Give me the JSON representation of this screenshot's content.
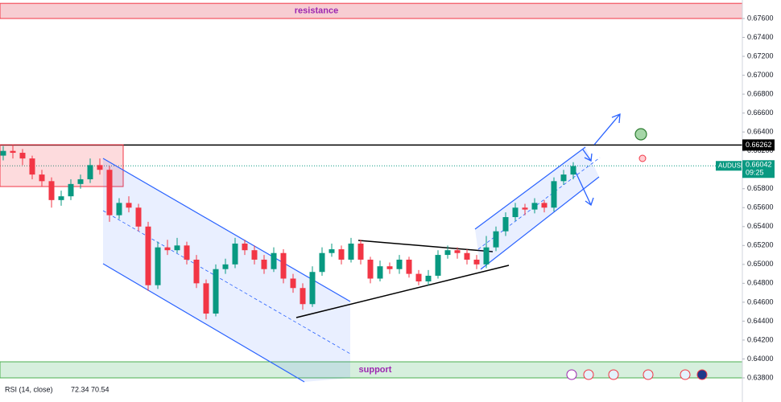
{
  "chart_data": {
    "type": "candlestick",
    "symbol": "AUDUSD",
    "up_color": "#089981",
    "down_color": "#f23645",
    "ylim": [
      0.638,
      0.676
    ],
    "yticks": [
      {
        "value": 0.676,
        "label": "0.67600"
      },
      {
        "value": 0.674,
        "label": "0.67400"
      },
      {
        "value": 0.672,
        "label": "0.67200"
      },
      {
        "value": 0.67,
        "label": "0.67000"
      },
      {
        "value": 0.668,
        "label": "0.66800"
      },
      {
        "value": 0.666,
        "label": "0.66600"
      },
      {
        "value": 0.664,
        "label": "0.66400"
      },
      {
        "value": 0.662,
        "label": "0.66200"
      },
      {
        "value": 0.66,
        "label": "0.66000"
      },
      {
        "value": 0.658,
        "label": "0.65800"
      },
      {
        "value": 0.656,
        "label": "0.65600"
      },
      {
        "value": 0.654,
        "label": "0.65400"
      },
      {
        "value": 0.652,
        "label": "0.65200"
      },
      {
        "value": 0.65,
        "label": "0.65000"
      },
      {
        "value": 0.648,
        "label": "0.64800"
      },
      {
        "value": 0.646,
        "label": "0.64600"
      },
      {
        "value": 0.644,
        "label": "0.64400"
      },
      {
        "value": 0.642,
        "label": "0.64200"
      },
      {
        "value": 0.64,
        "label": "0.64000"
      },
      {
        "value": 0.638,
        "label": "0.63800"
      }
    ],
    "zones": [
      {
        "label": "resistance",
        "range": [
          0.676,
          0.6776
        ],
        "color": "#f7cdd2"
      },
      {
        "label": "support",
        "range": [
          0.638,
          0.6397
        ],
        "color": "#d6efdd"
      }
    ],
    "level": {
      "value": 0.66262,
      "label": "0.66262"
    },
    "last_price": {
      "value": 0.66042,
      "label": "0.66042",
      "countdown": "09:25"
    },
    "indicator": {
      "name": "RSI (14, close)",
      "values": [
        72.34,
        70.54
      ]
    },
    "candles": [
      [
        0.6615,
        0.6625,
        0.661,
        0.662
      ],
      [
        0.662,
        0.6626,
        0.6612,
        0.6618
      ],
      [
        0.6618,
        0.6622,
        0.6605,
        0.6612
      ],
      [
        0.6612,
        0.6615,
        0.659,
        0.6595
      ],
      [
        0.6595,
        0.66,
        0.6582,
        0.6588
      ],
      [
        0.6588,
        0.6592,
        0.656,
        0.6568
      ],
      [
        0.6568,
        0.6578,
        0.6562,
        0.6572
      ],
      [
        0.6572,
        0.659,
        0.6568,
        0.6585
      ],
      [
        0.6585,
        0.6595,
        0.658,
        0.659
      ],
      [
        0.659,
        0.6612,
        0.6586,
        0.6605
      ],
      [
        0.6605,
        0.6612,
        0.6595,
        0.66
      ],
      [
        0.66,
        0.6604,
        0.6545,
        0.6552
      ],
      [
        0.6552,
        0.657,
        0.6548,
        0.6565
      ],
      [
        0.6565,
        0.6572,
        0.6555,
        0.656
      ],
      [
        0.656,
        0.6564,
        0.6535,
        0.654
      ],
      [
        0.654,
        0.6545,
        0.6472,
        0.6478
      ],
      [
        0.6478,
        0.6524,
        0.6474,
        0.6518
      ],
      [
        0.6518,
        0.6526,
        0.651,
        0.6515
      ],
      [
        0.6515,
        0.6528,
        0.6512,
        0.652
      ],
      [
        0.652,
        0.6524,
        0.65,
        0.6505
      ],
      [
        0.6505,
        0.651,
        0.6475,
        0.648
      ],
      [
        0.648,
        0.6484,
        0.6442,
        0.6448
      ],
      [
        0.6448,
        0.65,
        0.6445,
        0.6495
      ],
      [
        0.6495,
        0.6506,
        0.649,
        0.65
      ],
      [
        0.65,
        0.6528,
        0.6496,
        0.6522
      ],
      [
        0.6522,
        0.6526,
        0.651,
        0.6515
      ],
      [
        0.6515,
        0.652,
        0.65,
        0.6505
      ],
      [
        0.6505,
        0.651,
        0.649,
        0.6495
      ],
      [
        0.6495,
        0.6518,
        0.6492,
        0.6512
      ],
      [
        0.6512,
        0.6516,
        0.648,
        0.6485
      ],
      [
        0.6485,
        0.649,
        0.647,
        0.6475
      ],
      [
        0.6475,
        0.648,
        0.6452,
        0.6458
      ],
      [
        0.6458,
        0.6498,
        0.6455,
        0.6492
      ],
      [
        0.6492,
        0.6518,
        0.6488,
        0.6512
      ],
      [
        0.6512,
        0.6522,
        0.6508,
        0.6516
      ],
      [
        0.6516,
        0.652,
        0.65,
        0.6505
      ],
      [
        0.6505,
        0.6528,
        0.6502,
        0.6522
      ],
      [
        0.6522,
        0.6526,
        0.65,
        0.6505
      ],
      [
        0.6505,
        0.6508,
        0.648,
        0.6485
      ],
      [
        0.6485,
        0.6504,
        0.6482,
        0.6498
      ],
      [
        0.6498,
        0.6502,
        0.649,
        0.6495
      ],
      [
        0.6495,
        0.651,
        0.649,
        0.6505
      ],
      [
        0.6505,
        0.6508,
        0.6486,
        0.649
      ],
      [
        0.649,
        0.6494,
        0.6478,
        0.6482
      ],
      [
        0.6482,
        0.6494,
        0.6478,
        0.6488
      ],
      [
        0.6488,
        0.6515,
        0.6485,
        0.651
      ],
      [
        0.651,
        0.652,
        0.6506,
        0.6515
      ],
      [
        0.6515,
        0.6518,
        0.6506,
        0.6512
      ],
      [
        0.6512,
        0.6516,
        0.65,
        0.6505
      ],
      [
        0.6505,
        0.651,
        0.6495,
        0.65
      ],
      [
        0.65,
        0.653,
        0.6496,
        0.6518
      ],
      [
        0.6518,
        0.654,
        0.6514,
        0.6535
      ],
      [
        0.6535,
        0.6555,
        0.653,
        0.655
      ],
      [
        0.655,
        0.6565,
        0.6546,
        0.656
      ],
      [
        0.656,
        0.6564,
        0.6552,
        0.6558
      ],
      [
        0.6558,
        0.657,
        0.6554,
        0.6565
      ],
      [
        0.6565,
        0.6568,
        0.6555,
        0.656
      ],
      [
        0.656,
        0.6592,
        0.6556,
        0.6588
      ],
      [
        0.6588,
        0.66,
        0.6584,
        0.6595
      ],
      [
        0.6595,
        0.6608,
        0.659,
        0.6604
      ]
    ]
  }
}
